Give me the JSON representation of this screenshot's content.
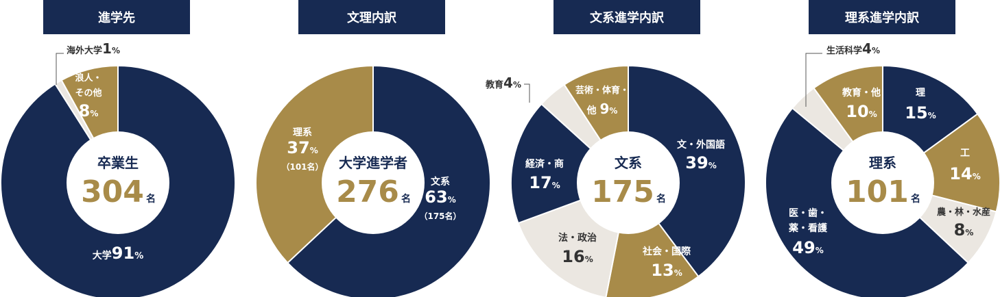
{
  "colors": {
    "navy": "#172a52",
    "gold": "#a88b49",
    "light": "#ebe7e1",
    "text_gold": "#a88b49"
  },
  "chart_data": [
    {
      "type": "pie",
      "title": "進学先",
      "center": {
        "label": "卒業生",
        "value": "304",
        "unit": "名"
      },
      "slices": [
        {
          "name": "大学",
          "value": 91,
          "pct": "91",
          "unit": "%",
          "color": "navy"
        },
        {
          "name": "海外大学",
          "value": 1,
          "pct": "1",
          "unit": "%",
          "color": "light"
        },
        {
          "name": "浪人・その他",
          "value": 8,
          "pct": "8",
          "unit": "%",
          "color": "gold"
        }
      ]
    },
    {
      "type": "pie",
      "title": "文理内訳",
      "center": {
        "label": "大学進学者",
        "value": "276",
        "unit": "名"
      },
      "slices": [
        {
          "name": "文系",
          "value": 63,
          "pct": "63",
          "unit": "%",
          "sub": "（175名）",
          "color": "navy"
        },
        {
          "name": "理系",
          "value": 37,
          "pct": "37",
          "unit": "%",
          "sub": "（101名）",
          "color": "gold"
        }
      ]
    },
    {
      "type": "pie",
      "title": "文系進学内訳",
      "center": {
        "label": "文系",
        "value": "175",
        "unit": "名"
      },
      "slices": [
        {
          "name": "文・外国語",
          "value": 39,
          "pct": "39",
          "unit": "%",
          "color": "navy"
        },
        {
          "name": "社会・国際",
          "value": 13,
          "pct": "13",
          "unit": "%",
          "color": "gold"
        },
        {
          "name": "法・政治",
          "value": 16,
          "pct": "16",
          "unit": "%",
          "color": "light"
        },
        {
          "name": "経済・商",
          "value": 17,
          "pct": "17",
          "unit": "%",
          "color": "navy"
        },
        {
          "name": "教育",
          "value": 4,
          "pct": "4",
          "unit": "%",
          "color": "light"
        },
        {
          "name": "芸術・体育・他",
          "value": 9,
          "pct": "9",
          "unit": "%",
          "color": "gold"
        }
      ]
    },
    {
      "type": "pie",
      "title": "理系進学内訳",
      "center": {
        "label": "理系",
        "value": "101",
        "unit": "名"
      },
      "slices": [
        {
          "name": "理",
          "value": 15,
          "pct": "15",
          "unit": "%",
          "color": "navy"
        },
        {
          "name": "工",
          "value": 14,
          "pct": "14",
          "unit": "%",
          "color": "gold"
        },
        {
          "name": "農・林・水産",
          "value": 8,
          "pct": "8",
          "unit": "%",
          "color": "light"
        },
        {
          "name": "医・歯・薬・看護",
          "value": 49,
          "pct": "49",
          "unit": "%",
          "color": "navy"
        },
        {
          "name": "生活科学",
          "value": 4,
          "pct": "4",
          "unit": "%",
          "color": "light"
        },
        {
          "name": "教育・他",
          "value": 10,
          "pct": "10",
          "unit": "%",
          "color": "gold"
        }
      ]
    }
  ]
}
